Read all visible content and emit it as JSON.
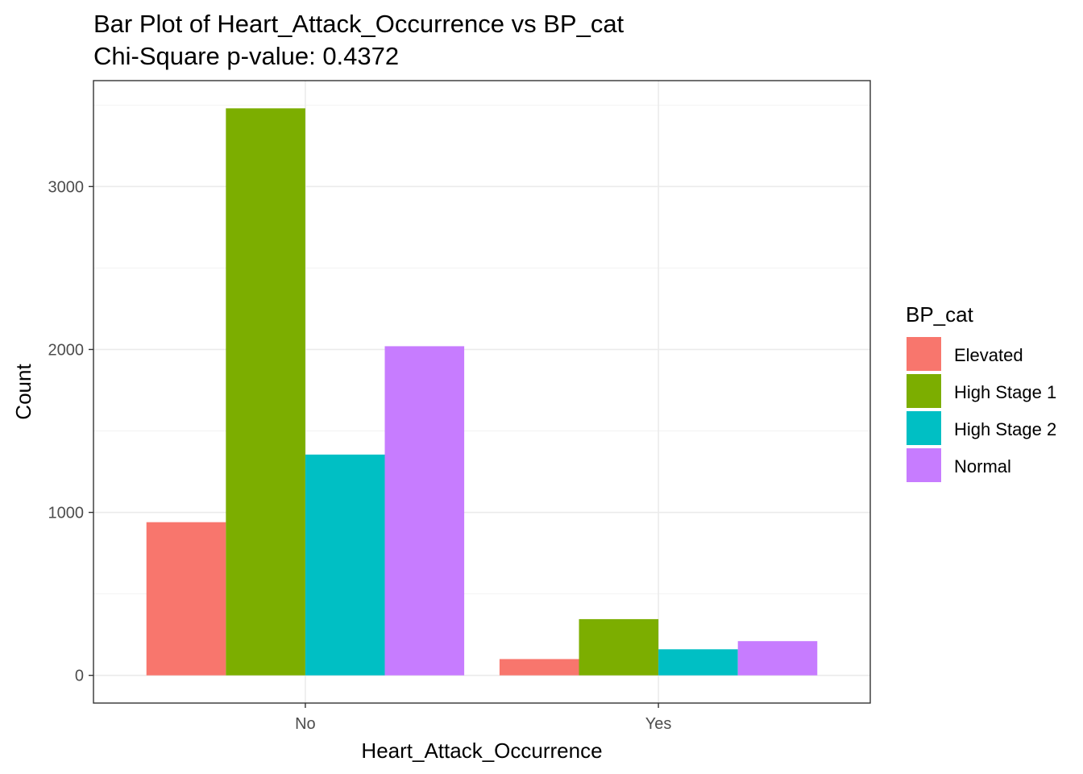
{
  "chart_data": {
    "type": "bar",
    "title": "Bar Plot of Heart_Attack_Occurrence vs BP_cat",
    "subtitle": "Chi-Square p-value: 0.4372",
    "xlabel": "Heart_Attack_Occurrence",
    "ylabel": "Count",
    "categories": [
      "No",
      "Yes"
    ],
    "series": [
      {
        "name": "Elevated",
        "color": "#F8766D",
        "values": [
          940,
          100
        ]
      },
      {
        "name": "High Stage 1",
        "color": "#7CAE00",
        "values": [
          3480,
          345
        ]
      },
      {
        "name": "High Stage 2",
        "color": "#00BFC4",
        "values": [
          1355,
          160
        ]
      },
      {
        "name": "Normal",
        "color": "#C77CFF",
        "values": [
          2020,
          210
        ]
      }
    ],
    "ylim": [
      -170,
      3650
    ],
    "yticks": [
      0,
      1000,
      2000,
      3000
    ],
    "ytick_labels": [
      "0",
      "1000",
      "2000",
      "3000"
    ],
    "grid": true,
    "legend": {
      "title": "BP_cat",
      "position": "right"
    }
  }
}
